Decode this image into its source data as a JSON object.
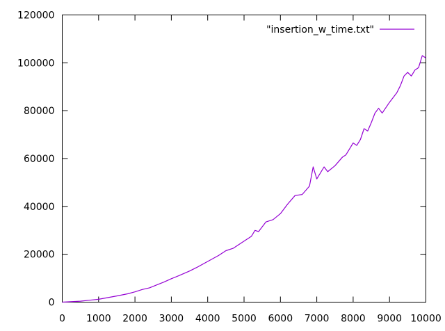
{
  "chart_data": {
    "type": "line",
    "title": "",
    "xlabel": "",
    "ylabel": "",
    "xlim": [
      0,
      10000
    ],
    "ylim": [
      0,
      120000
    ],
    "xticks": [
      0,
      1000,
      2000,
      3000,
      4000,
      5000,
      6000,
      7000,
      8000,
      9000,
      10000
    ],
    "yticks": [
      0,
      20000,
      40000,
      60000,
      80000,
      100000,
      120000
    ],
    "grid": false,
    "legend_position": "top-right",
    "series": [
      {
        "name": "\"insertion_w_time.txt\"",
        "color": "#9400d3",
        "x": [
          0,
          500,
          1000,
          1500,
          1800,
          2000,
          2200,
          2400,
          2600,
          2800,
          3000,
          3200,
          3500,
          3700,
          4000,
          4300,
          4500,
          4700,
          5000,
          5200,
          5300,
          5400,
          5600,
          5800,
          6000,
          6200,
          6400,
          6600,
          6800,
          6900,
          7000,
          7200,
          7300,
          7500,
          7700,
          7800,
          7900,
          8000,
          8100,
          8200,
          8300,
          8400,
          8500,
          8600,
          8700,
          8800,
          9000,
          9200,
          9300,
          9400,
          9500,
          9600,
          9700,
          9800,
          9900,
          10000
        ],
        "y": [
          0,
          400,
          1200,
          2600,
          3500,
          4300,
          5300,
          6000,
          7200,
          8400,
          9800,
          11000,
          13000,
          14500,
          17000,
          19500,
          21500,
          22500,
          25500,
          27500,
          30000,
          29500,
          33500,
          34500,
          37000,
          41000,
          44500,
          45000,
          48500,
          56500,
          51500,
          56500,
          54500,
          57000,
          60500,
          61500,
          64000,
          66500,
          65500,
          68000,
          72500,
          71500,
          75000,
          79000,
          81000,
          79000,
          83500,
          87500,
          90500,
          94500,
          96000,
          94500,
          97000,
          98000,
          103000,
          102000
        ]
      }
    ]
  }
}
